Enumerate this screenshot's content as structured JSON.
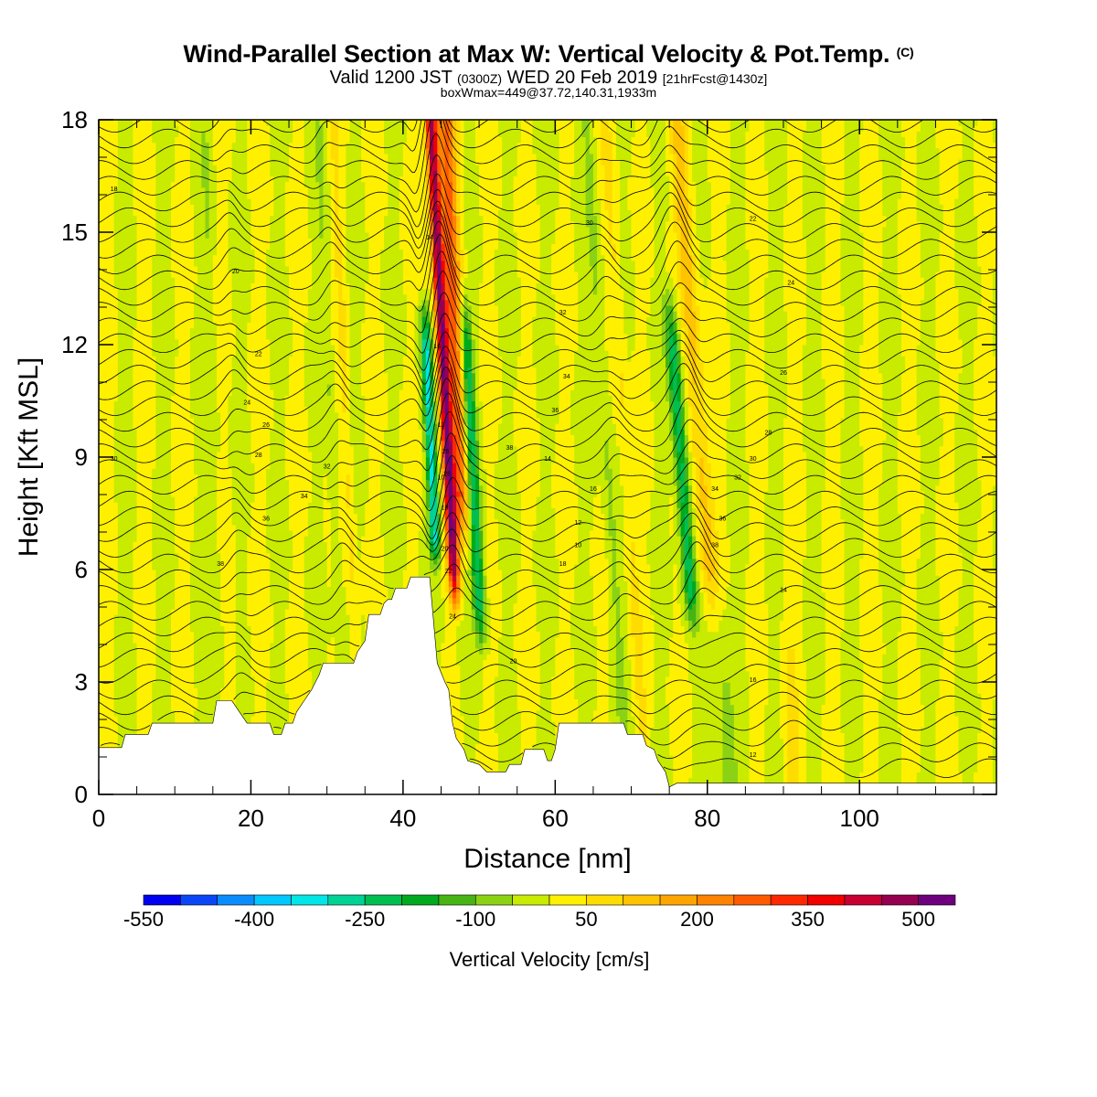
{
  "header": {
    "title": "Wind-Parallel Section at Max W: Vertical Velocity & Pot.Temp.",
    "title_suffix": "(C)",
    "valid_prefix": "Valid 1200 JST",
    "valid_utc": "(0300Z)",
    "valid_date": "WED 20 Feb 2019",
    "forecast": "[21hrFcst@1430z]",
    "box_info": "boxWmax=449@37.72,140.31,1933m"
  },
  "chart_data": {
    "type": "heatmap",
    "xlabel": "Distance [nm]",
    "ylabel": "Height [Kft MSL]",
    "xlim": [
      0,
      118
    ],
    "ylim": [
      0,
      18
    ],
    "x_ticks": [
      0,
      20,
      40,
      60,
      80,
      100
    ],
    "y_ticks": [
      0,
      3,
      6,
      9,
      12,
      15,
      18
    ],
    "colorbar": {
      "title": "Vertical Velocity [cm/s]",
      "range": [
        -550,
        550
      ],
      "step": 50,
      "tick_labels": [
        "-550",
        "-400",
        "-250",
        "-100",
        "50",
        "200",
        "350",
        "500"
      ],
      "tick_values": [
        -550,
        -400,
        -250,
        -100,
        50,
        200,
        350,
        500
      ],
      "colors": [
        "#0000f0",
        "#0a46f5",
        "#0a8cff",
        "#00c8ff",
        "#00e6e6",
        "#00d296",
        "#00be50",
        "#00aa1e",
        "#46b414",
        "#8cd214",
        "#c8eb00",
        "#fff000",
        "#ffdc00",
        "#ffc300",
        "#ffa500",
        "#ff8200",
        "#ff5a00",
        "#ff2800",
        "#f00000",
        "#c80032",
        "#960050",
        "#6e007d"
      ]
    },
    "contour_label_values": [
      "18",
      "20",
      "22",
      "24",
      "26",
      "28",
      "30",
      "32",
      "34",
      "36",
      "38",
      "14",
      "16",
      "12",
      "10"
    ],
    "terrain_heights_kft": [
      [
        0,
        1.25
      ],
      [
        3,
        1.25
      ],
      [
        3.5,
        1.6
      ],
      [
        6.5,
        1.6
      ],
      [
        7,
        1.9
      ],
      [
        15,
        1.9
      ],
      [
        15.5,
        2.5
      ],
      [
        17.5,
        2.5
      ],
      [
        19.5,
        1.9
      ],
      [
        22.5,
        1.9
      ],
      [
        23,
        1.6
      ],
      [
        24,
        1.6
      ],
      [
        24.5,
        1.9
      ],
      [
        25.5,
        1.9
      ],
      [
        26,
        2.2
      ],
      [
        27,
        2.5
      ],
      [
        28,
        2.8
      ],
      [
        29,
        3.2
      ],
      [
        29.5,
        3.5
      ],
      [
        33.5,
        3.5
      ],
      [
        34,
        3.8
      ],
      [
        35,
        4.1
      ],
      [
        35.5,
        4.8
      ],
      [
        37,
        4.8
      ],
      [
        37.5,
        5.1
      ],
      [
        38,
        5.2
      ],
      [
        38.5,
        5.2
      ],
      [
        39,
        5.5
      ],
      [
        40.5,
        5.5
      ],
      [
        41,
        5.8
      ],
      [
        43.5,
        5.8
      ],
      [
        44.5,
        3.5
      ],
      [
        45.5,
        3
      ],
      [
        46,
        2.8
      ],
      [
        46.5,
        1.9
      ],
      [
        47,
        1.5
      ],
      [
        48,
        1.2
      ],
      [
        48.5,
        0.9
      ],
      [
        50,
        0.8
      ],
      [
        51,
        0.6
      ],
      [
        53.5,
        0.6
      ],
      [
        54,
        0.8
      ],
      [
        55.5,
        0.8
      ],
      [
        56,
        1.2
      ],
      [
        58.5,
        1.2
      ],
      [
        59,
        0.9
      ],
      [
        59.5,
        0.9
      ],
      [
        60,
        1.2
      ],
      [
        60.5,
        1.9
      ],
      [
        69,
        1.9
      ],
      [
        69.5,
        1.6
      ],
      [
        71.5,
        1.6
      ],
      [
        72,
        1.3
      ],
      [
        73,
        1.2
      ],
      [
        73.5,
        0.9
      ],
      [
        74.5,
        0.6
      ],
      [
        75,
        0.2
      ],
      [
        76,
        0.3
      ],
      [
        118,
        0.3
      ]
    ]
  }
}
